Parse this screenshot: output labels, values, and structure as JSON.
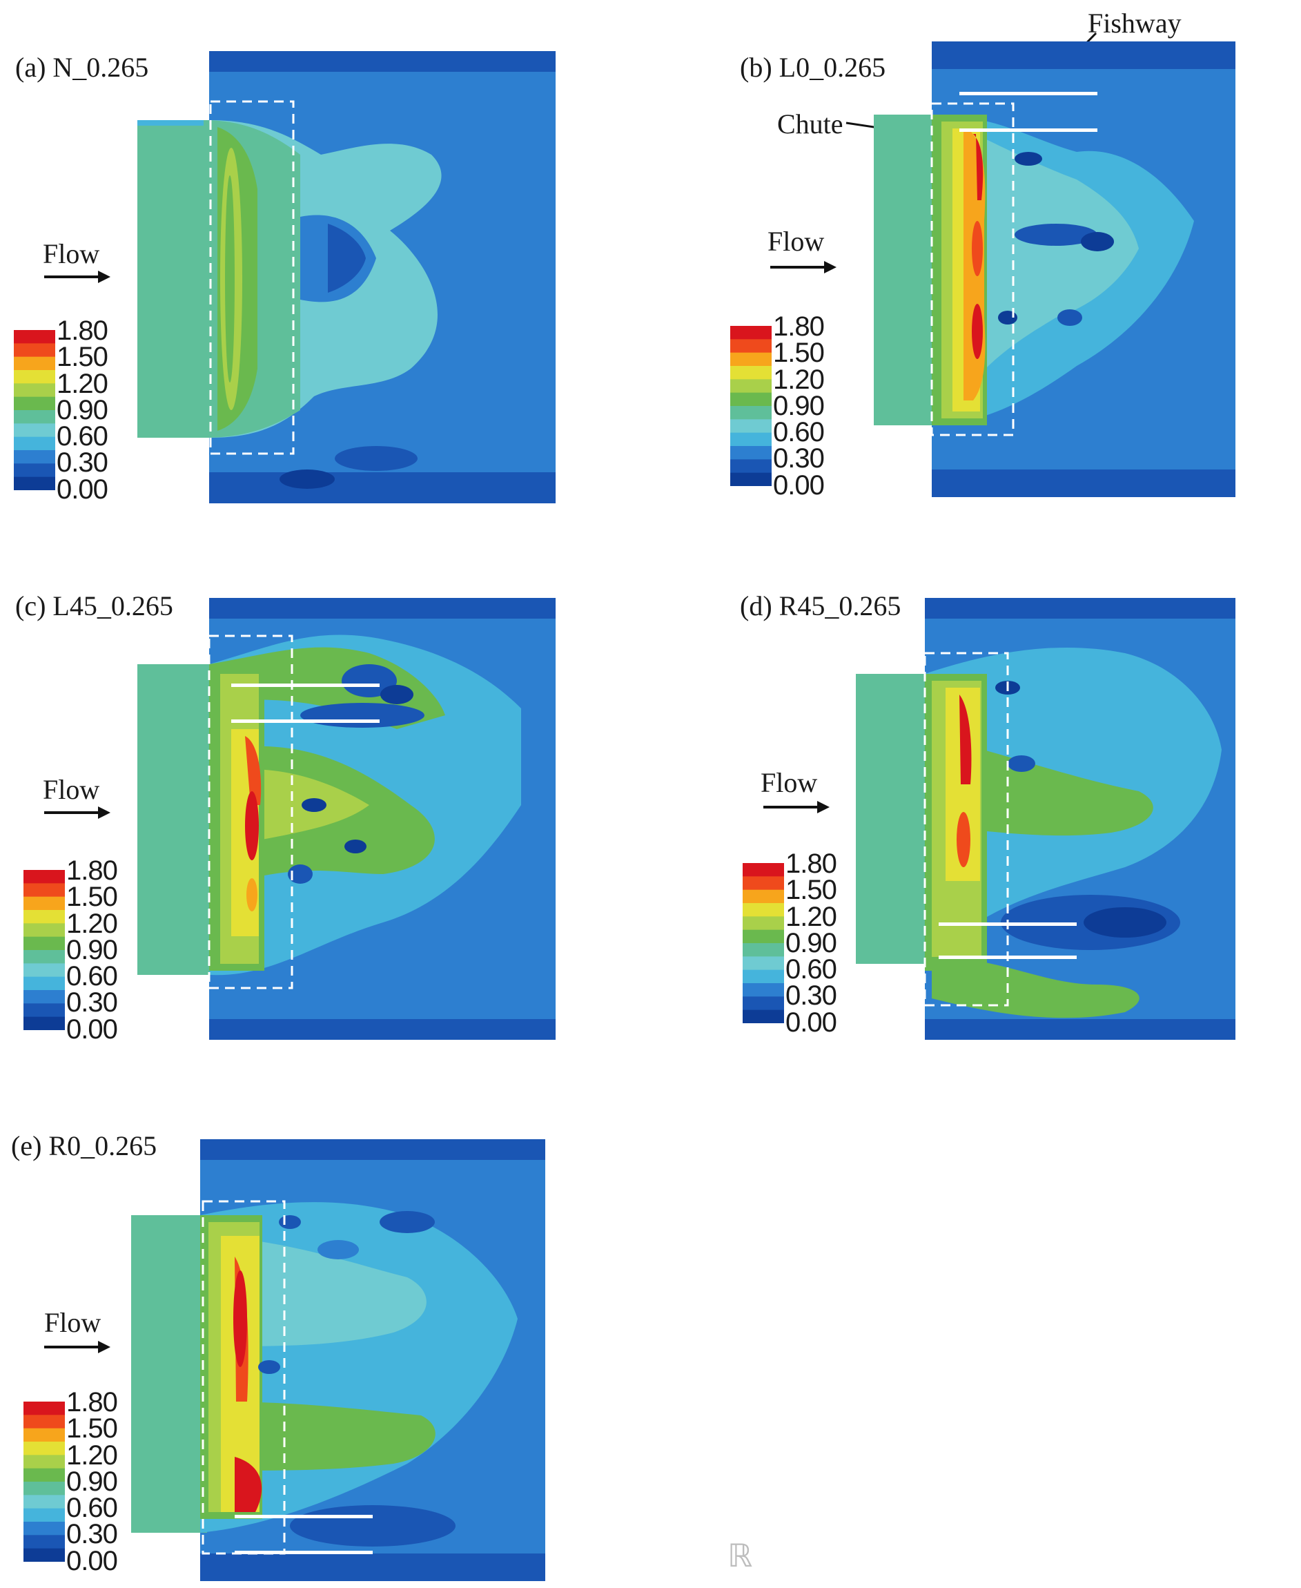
{
  "colors": {
    "c0": "#0d3c96",
    "c1": "#1a56b4",
    "c2": "#2d7fd0",
    "c3": "#45b4dc",
    "c4": "#6fcbd2",
    "c5": "#5fbf9a",
    "c6": "#6ab94e",
    "c7": "#a9d04a",
    "c8": "#e4e035",
    "c9": "#f7a51c",
    "c10": "#ef4a1c",
    "c11": "#d9151d",
    "white": "#ffffff",
    "dashed": "#ffffff"
  },
  "colorbar": {
    "ticks": [
      "1.80",
      "1.50",
      "1.20",
      "0.90",
      "0.60",
      "0.30",
      "0.00"
    ],
    "icon": "none"
  },
  "flow_label": "Flow",
  "annotations": {
    "fishway": "Fishway",
    "chute": "Chute"
  },
  "panels": [
    {
      "id": "a",
      "label": "(a) N_0.265"
    },
    {
      "id": "b",
      "label": "(b) L0_0.265"
    },
    {
      "id": "c",
      "label": "(c) L45_0.265"
    },
    {
      "id": "d",
      "label": "(d) R45_0.265"
    },
    {
      "id": "e",
      "label": "(e) R0_0.265"
    }
  ],
  "watermark": "ℝ"
}
